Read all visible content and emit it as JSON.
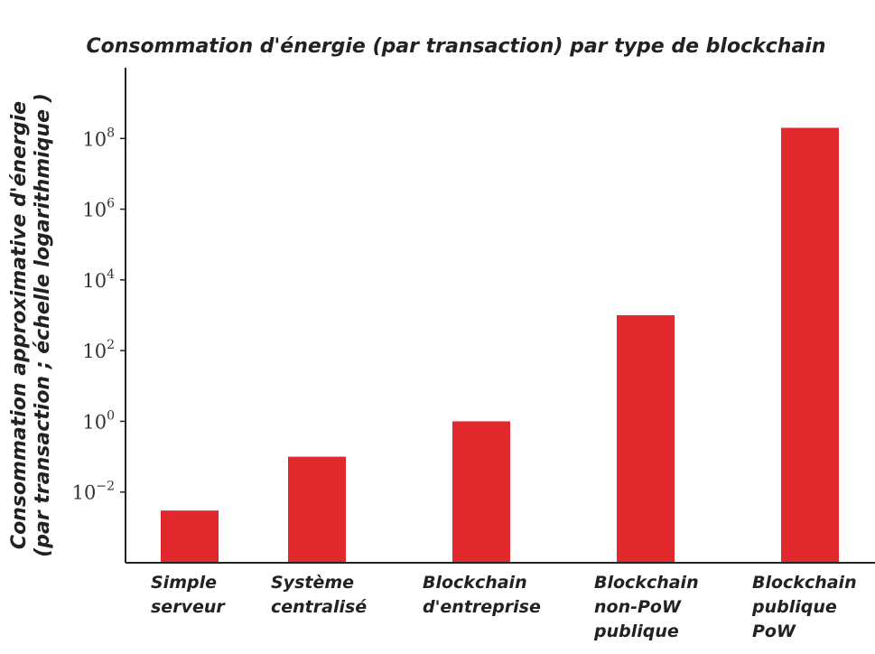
{
  "chart_data": {
    "type": "bar",
    "title": "Consommation d'énergie (par transaction) par type de blockchain",
    "ylabel_lines": [
      "Consommation approximative d'énergie",
      "(par transaction ; échelle logarithmique )"
    ],
    "yscale": "log",
    "ylim": [
      0.0001,
      10000000000
    ],
    "yticks": [
      {
        "value": 0.01,
        "base": "10",
        "exp": "−2"
      },
      {
        "value": 1,
        "base": "10",
        "exp": "0"
      },
      {
        "value": 100,
        "base": "10",
        "exp": "2"
      },
      {
        "value": 10000,
        "base": "10",
        "exp": "4"
      },
      {
        "value": 1000000,
        "base": "10",
        "exp": "6"
      },
      {
        "value": 100000000,
        "base": "10",
        "exp": "8"
      }
    ],
    "categories": [
      [
        "Simple",
        "serveur"
      ],
      [
        "Système",
        "centralisé"
      ],
      [
        "Blockchain",
        "d'entreprise"
      ],
      [
        "Blockchain",
        "non-PoW",
        "publique"
      ],
      [
        "Blockchain",
        "publique",
        "PoW"
      ]
    ],
    "values": [
      0.003,
      0.1,
      1,
      1000,
      200000000
    ],
    "bar_color": "#e1282c",
    "grid": false
  }
}
